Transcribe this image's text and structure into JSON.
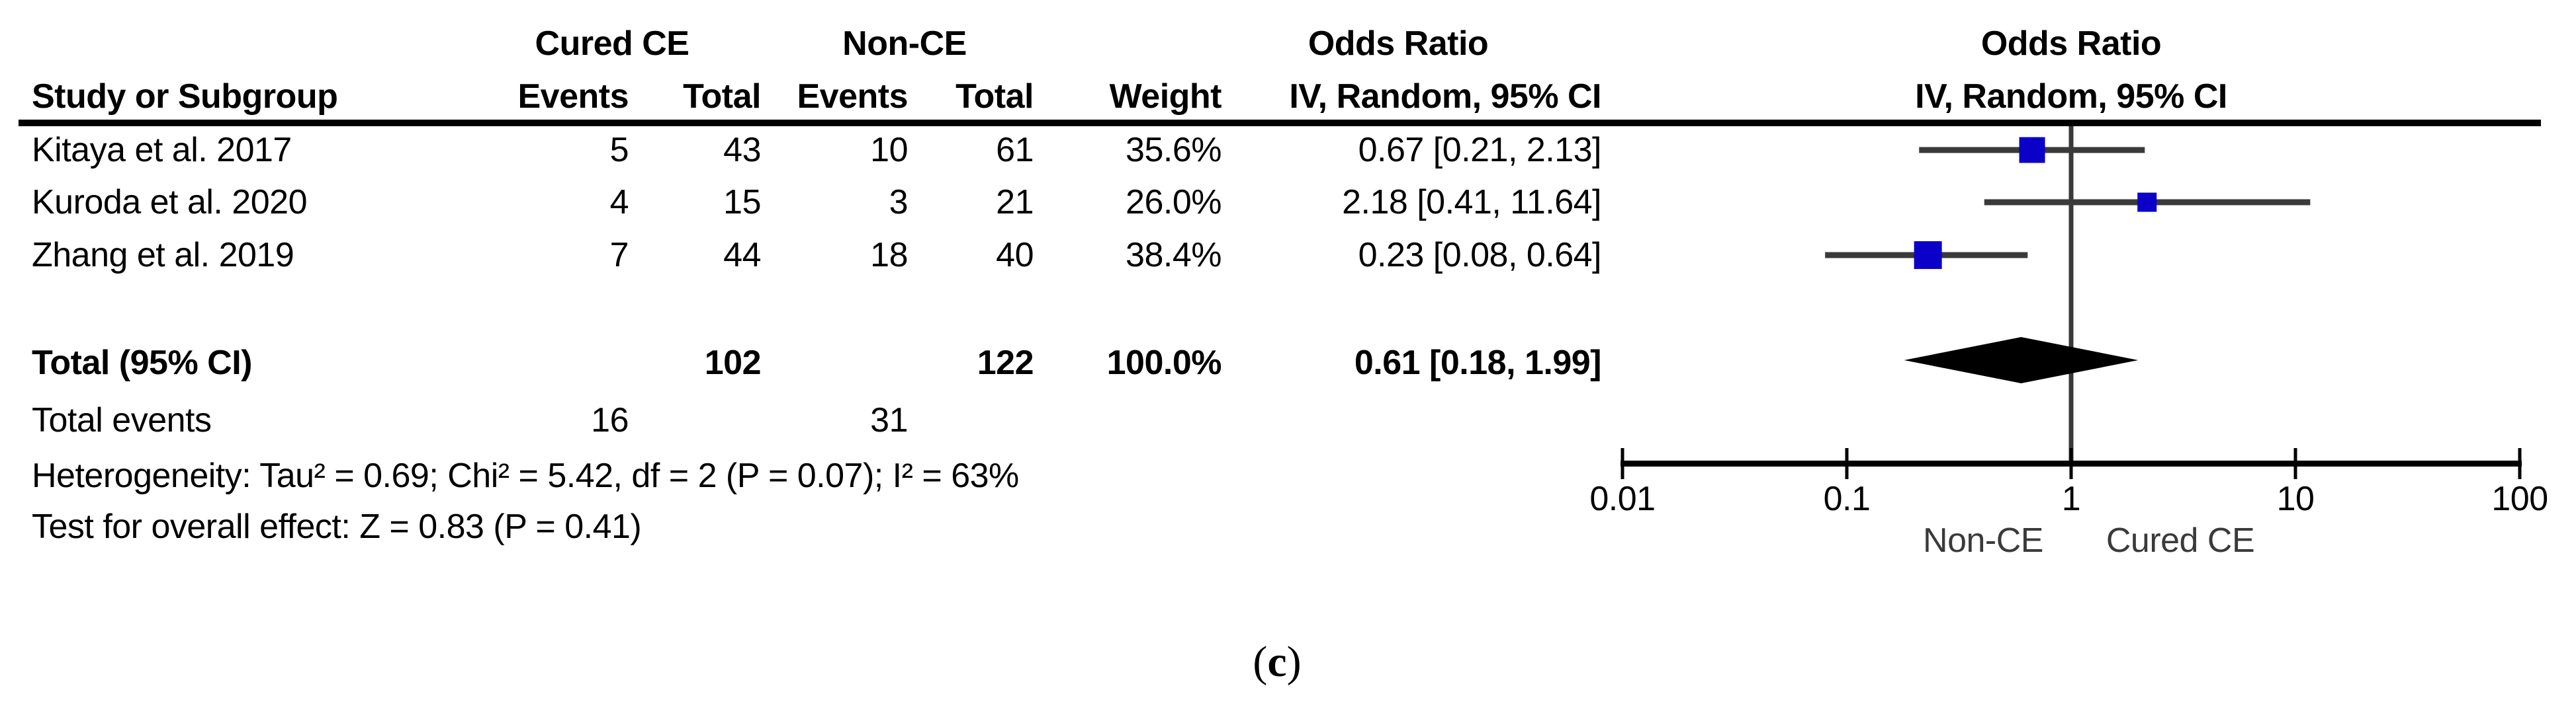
{
  "table": {
    "group_headers": {
      "cured_ce": "Cured CE",
      "non_ce": "Non-CE",
      "odds_ratio_left": "Odds Ratio",
      "odds_ratio_right": "Odds Ratio"
    },
    "col_headers": {
      "study": "Study or Subgroup",
      "events1": "Events",
      "total1": "Total",
      "events2": "Events",
      "total2": "Total",
      "weight": "Weight",
      "iv_random_left": "IV, Random, 95% CI",
      "iv_random_right": "IV, Random, 95% CI"
    },
    "rows": [
      {
        "study": "Kitaya et al. 2017",
        "events1": "5",
        "total1": "43",
        "events2": "10",
        "total2": "61",
        "weight": "35.6%",
        "or_ci": "0.67 [0.21, 2.13]"
      },
      {
        "study": "Kuroda et al. 2020",
        "events1": "4",
        "total1": "15",
        "events2": "3",
        "total2": "21",
        "weight": "26.0%",
        "or_ci": "2.18 [0.41, 11.64]"
      },
      {
        "study": "Zhang et al. 2019",
        "events1": "7",
        "total1": "44",
        "events2": "18",
        "total2": "40",
        "weight": "38.4%",
        "or_ci": "0.23 [0.08, 0.64]"
      }
    ],
    "total_row": {
      "label": "Total (95% CI)",
      "total1": "102",
      "total2": "122",
      "weight": "100.0%",
      "or_ci": "0.61 [0.18, 1.99]"
    },
    "total_events": {
      "label": "Total events",
      "events1": "16",
      "events2": "31"
    },
    "heterogeneity": "Heterogeneity: Tau² = 0.69; Chi² = 5.42, df = 2 (P = 0.07); I² = 63%",
    "overall_effect": "Test for overall effect: Z = 0.83 (P = 0.41)"
  },
  "chart_data": {
    "type": "forest",
    "effect_measure": "Odds Ratio",
    "model": "IV, Random, 95% CI",
    "x_scale": "log10",
    "axis_ticks": [
      0.01,
      0.1,
      1,
      10,
      100
    ],
    "axis_tick_labels": [
      "0.01",
      "0.1",
      "1",
      "10",
      "100"
    ],
    "null_line": 1,
    "favours_left_label": "Non-CE",
    "favours_right_label": "Cured CE",
    "studies": [
      {
        "name": "Kitaya et al. 2017",
        "or": 0.67,
        "ci_low": 0.21,
        "ci_high": 2.13,
        "weight_pct": 35.6
      },
      {
        "name": "Kuroda et al. 2020",
        "or": 2.18,
        "ci_low": 0.41,
        "ci_high": 11.64,
        "weight_pct": 26.0
      },
      {
        "name": "Zhang et al. 2019",
        "or": 0.23,
        "ci_low": 0.08,
        "ci_high": 0.64,
        "weight_pct": 38.4
      }
    ],
    "overall": {
      "or": 0.61,
      "ci_low": 0.18,
      "ci_high": 1.99
    },
    "marker_color": "#0b00c8",
    "line_color": "#3a3a3a",
    "axis_color": "#000000"
  },
  "caption": {
    "open": "(",
    "letter": "c",
    "close": ")"
  }
}
